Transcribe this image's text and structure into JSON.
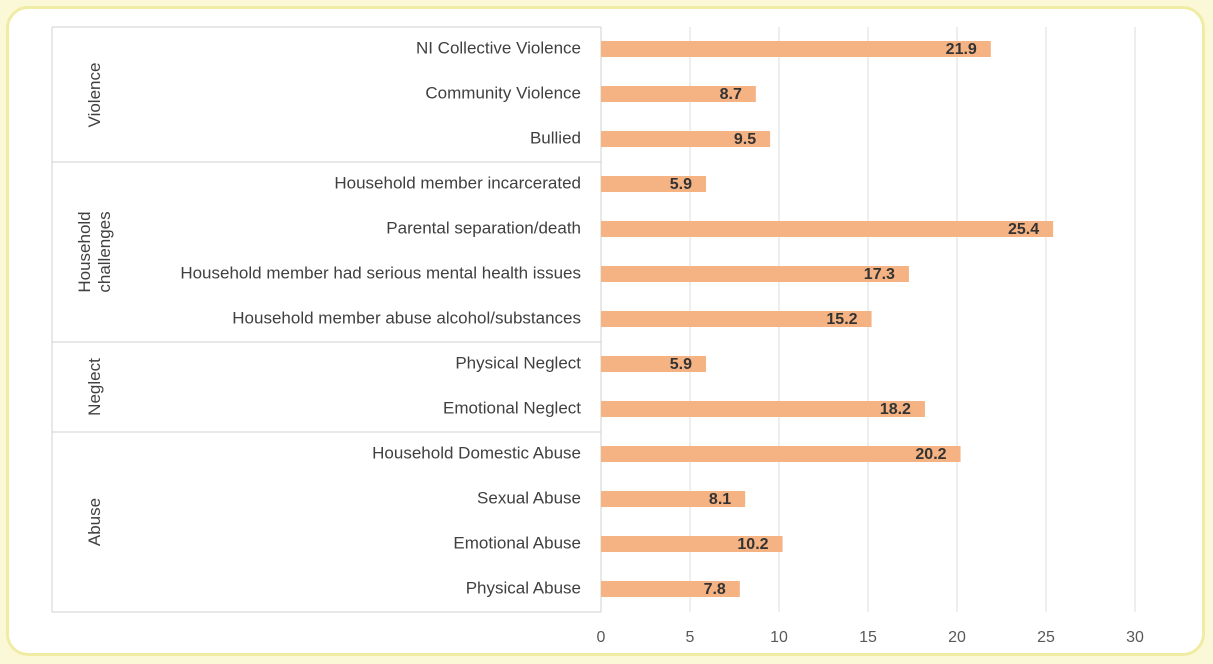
{
  "chart_data": {
    "type": "bar",
    "orientation": "horizontal",
    "color": "#f5b384",
    "groups": [
      {
        "name": "Violence",
        "categories": [
          "NI Collective Violence",
          "Community Violence",
          "Bullied"
        ],
        "values": [
          21.9,
          8.7,
          9.5
        ]
      },
      {
        "name": "Household challenges",
        "categories": [
          "Household member incarcerated",
          "Parental separation/death",
          "Household member had serious mental health issues",
          "Household member abuse alcohol/substances"
        ],
        "values": [
          5.9,
          25.4,
          17.3,
          15.2
        ]
      },
      {
        "name": "Neglect",
        "categories": [
          "Physical Neglect",
          "Emotional Neglect"
        ],
        "values": [
          5.9,
          18.2
        ]
      },
      {
        "name": "Abuse",
        "categories": [
          "Household Domestic Abuse",
          "Sexual Abuse",
          "Emotional Abuse",
          "Physical Abuse"
        ],
        "values": [
          20.2,
          8.1,
          10.2,
          7.8
        ]
      }
    ],
    "xlim": [
      0,
      30
    ],
    "xticks": [
      0,
      5,
      10,
      15,
      20,
      25,
      30
    ],
    "grid": true
  }
}
